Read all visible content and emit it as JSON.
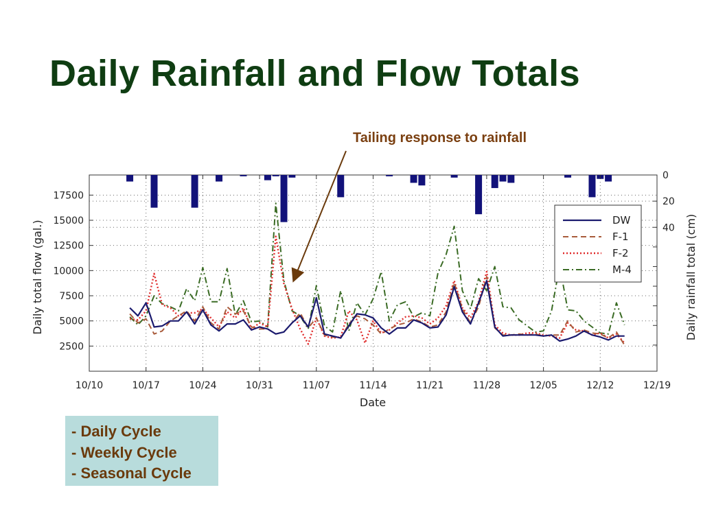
{
  "slide": {
    "title": "Daily Rainfall and Flow Totals",
    "annotation": "Tailing response to rainfall",
    "cycles": [
      "- Daily Cycle",
      "- Weekly Cycle",
      "- Seasonal Cycle"
    ],
    "title_color": "#0f3d12",
    "note_color": "#7a3f10",
    "box_color": "#b8dcdc"
  },
  "chart_data": {
    "type": "line",
    "xlabel": "Date",
    "ylabel_left": "Daily total flow (gal.)",
    "ylabel_right": "Daily rainfall total (cm)",
    "x_range": [
      "10/10",
      "12/19"
    ],
    "x_tick_labels": [
      "10/10",
      "10/17",
      "10/24",
      "10/31",
      "11/07",
      "11/14",
      "11/21",
      "11/28",
      "12/05",
      "12/12",
      "12/19"
    ],
    "flow_ticks": [
      2500,
      5000,
      7500,
      10000,
      12500,
      15000,
      17500
    ],
    "flow_tick_labels": [
      "2500",
      "5000",
      "7500",
      "10000",
      "12500",
      "15000",
      "17500"
    ],
    "rain_ticks": [
      0,
      20,
      40
    ],
    "rain_tick_labels": [
      "0",
      "20",
      "40"
    ],
    "ylim_flow": [
      0,
      19500
    ],
    "ylim_rain_inverted": [
      0,
      150
    ],
    "grid": true,
    "legend_position": "top-right",
    "series": [
      {
        "name": "DW",
        "color": "#1a1a6e",
        "style": "solid",
        "x": [
          15,
          16,
          17,
          18,
          19,
          20,
          21,
          22,
          23,
          24,
          25,
          26,
          27,
          28,
          29,
          30,
          31,
          32,
          33,
          34,
          35,
          36,
          37,
          38,
          39,
          40,
          41,
          42,
          43,
          44,
          45,
          46,
          47,
          48,
          49,
          50,
          51,
          52,
          53,
          54,
          55,
          56,
          57,
          58,
          59,
          60,
          61,
          62,
          63,
          64,
          65,
          66,
          67,
          68,
          69,
          70,
          71,
          72,
          73,
          74,
          75,
          76
        ],
        "y": [
          6300,
          5500,
          6800,
          4400,
          4500,
          5000,
          5000,
          5900,
          4700,
          6100,
          4600,
          4000,
          4700,
          4700,
          5100,
          4100,
          4400,
          4200,
          3700,
          3900,
          4800,
          5500,
          4400,
          7300,
          3700,
          3500,
          3300,
          4500,
          5700,
          5600,
          5300,
          4300,
          3700,
          4300,
          4300,
          5100,
          4800,
          4300,
          4400,
          5600,
          8400,
          5900,
          4700,
          6800,
          9000,
          4400,
          3500,
          3600,
          3600,
          3600,
          3600,
          3500,
          3600,
          3000,
          3200,
          3500,
          4000,
          3600,
          3400,
          3100,
          3500,
          3500
        ]
      },
      {
        "name": "F-1",
        "color": "#a85a3a",
        "style": "dashed",
        "x": [
          15,
          16,
          17,
          18,
          19,
          20,
          21,
          22,
          23,
          24,
          25,
          26,
          27,
          28,
          29,
          30,
          31,
          32,
          33,
          34,
          35,
          36,
          37,
          38,
          39,
          40,
          41,
          42,
          43,
          44,
          45,
          46,
          47,
          48,
          49,
          50,
          51,
          52,
          53,
          54,
          55,
          56,
          57,
          58,
          59,
          60,
          61,
          62,
          63,
          64,
          65,
          66,
          67,
          68,
          69,
          70,
          71,
          72,
          73,
          74,
          75,
          76
        ],
        "y": [
          5700,
          4800,
          5200,
          3700,
          4000,
          5000,
          5500,
          6000,
          5000,
          6400,
          4800,
          4200,
          6400,
          5700,
          6000,
          4400,
          4200,
          4200,
          3700,
          3900,
          4800,
          5800,
          4300,
          5300,
          3600,
          3400,
          3300,
          4700,
          5500,
          5200,
          4600,
          3700,
          4200,
          4600,
          4800,
          5200,
          4900,
          4400,
          4600,
          5900,
          8800,
          6200,
          4800,
          6400,
          9400,
          4300,
          3600,
          3600,
          3700,
          3600,
          3700,
          3500,
          3600,
          3600,
          5000,
          3900,
          4100,
          3800,
          3700,
          3300,
          3900,
          2600
        ]
      },
      {
        "name": "F-2",
        "color": "#e02a2a",
        "style": "dotted",
        "x": [
          15,
          16,
          17,
          18,
          19,
          20,
          21,
          22,
          23,
          24,
          25,
          26,
          27,
          28,
          29,
          30,
          31,
          32,
          33,
          34,
          35,
          36,
          37,
          38,
          39,
          40,
          41,
          42,
          43,
          44,
          45,
          46,
          47,
          48,
          49,
          50,
          51,
          52,
          53,
          54,
          55,
          56,
          57,
          58,
          59,
          60,
          61,
          62,
          63,
          64,
          65,
          66,
          67,
          68,
          69,
          70,
          71,
          72,
          73,
          74,
          75,
          76
        ],
        "y": [
          5200,
          5100,
          6000,
          9700,
          6600,
          6300,
          5500,
          5800,
          5800,
          6200,
          5300,
          4400,
          5900,
          5300,
          6300,
          4200,
          4800,
          4400,
          13400,
          8700,
          6200,
          4200,
          2700,
          5300,
          3500,
          3300,
          3400,
          6000,
          5100,
          2800,
          5000,
          3800,
          4100,
          4800,
          5400,
          5500,
          5300,
          4700,
          5300,
          6500,
          9000,
          6300,
          5300,
          6900,
          9900,
          4600,
          3800,
          3600,
          3600,
          3800,
          3800,
          3600,
          3500,
          3300,
          4800,
          4100,
          4000,
          3600,
          3800,
          3300,
          3700,
          2800
        ]
      },
      {
        "name": "M-4",
        "color": "#3a6b24",
        "style": "dashdot",
        "x": [
          15,
          16,
          17,
          18,
          19,
          20,
          21,
          22,
          23,
          24,
          25,
          26,
          27,
          28,
          29,
          30,
          31,
          32,
          33,
          34,
          35,
          36,
          37,
          38,
          39,
          40,
          41,
          42,
          43,
          44,
          45,
          46,
          47,
          48,
          49,
          50,
          51,
          52,
          53,
          54,
          55,
          56,
          57,
          58,
          59,
          60,
          61,
          62,
          63,
          64,
          65,
          66,
          67,
          68,
          69,
          70,
          71,
          72,
          73,
          74,
          75,
          76
        ],
        "y": [
          5400,
          4600,
          5500,
          7500,
          6700,
          6400,
          6000,
          8200,
          7000,
          10300,
          6900,
          6900,
          10200,
          5600,
          7000,
          4900,
          5000,
          4400,
          16700,
          9000,
          6000,
          5500,
          4200,
          8500,
          4500,
          3900,
          8000,
          4000,
          6800,
          5600,
          7200,
          9900,
          5000,
          6600,
          6900,
          5400,
          5800,
          5500,
          9800,
          11600,
          14400,
          8000,
          6200,
          9200,
          8000,
          10400,
          6400,
          6300,
          5100,
          4500,
          3900,
          4000,
          6000,
          10500,
          6100,
          6000,
          5000,
          4400,
          3800,
          3700,
          6800,
          4600
        ]
      }
    ],
    "rainfall": {
      "name": "Daily rainfall total (cm)",
      "color": "#12127a",
      "x": [
        15,
        18,
        23,
        26,
        29,
        32,
        33,
        34,
        35,
        41,
        47,
        50,
        51,
        55,
        58,
        60,
        61,
        62,
        69,
        72,
        73,
        74
      ],
      "y": [
        5,
        25,
        25,
        5,
        1,
        4,
        1,
        36,
        2,
        17,
        1,
        6,
        8,
        2,
        30,
        10,
        5,
        6,
        2,
        17,
        3,
        5
      ]
    }
  }
}
